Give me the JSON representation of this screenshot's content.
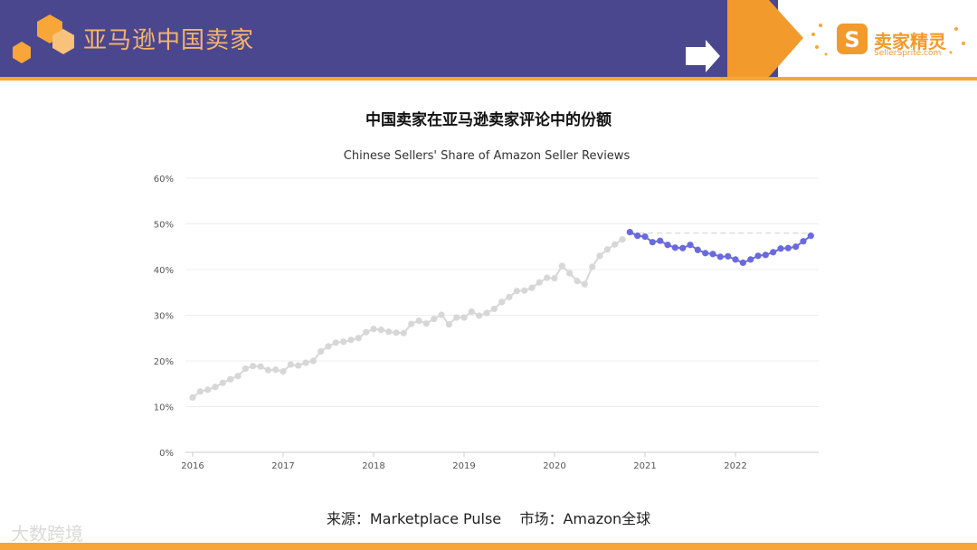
{
  "header": {
    "site_title": "亚马逊中国卖家",
    "brand_name": "卖家精灵",
    "brand_sub": "SellerSprite.com",
    "brand_color": "#f29a2c",
    "band_color": "#4b478f",
    "accent_color": "#f7a637"
  },
  "heading": "中国卖家在亚马逊卖家评论中的份额",
  "source_text": "来源：Marketplace Pulse    市场：Amazon全球",
  "watermark": "大数跨境",
  "chart_data": {
    "type": "line",
    "title": "Chinese Sellers' Share of Amazon Seller Reviews",
    "x_ticks": [
      "2016",
      "2017",
      "2018",
      "2019",
      "2020",
      "2021",
      "2022"
    ],
    "y_ticks": [
      "0%",
      "10%",
      "20%",
      "30%",
      "40%",
      "50%",
      "60%"
    ],
    "ylim": [
      0,
      60
    ],
    "xlim": [
      2015.92,
      2022.92
    ],
    "grid": true,
    "reference_line": 48,
    "series": [
      {
        "color": "#d7d7d7",
        "x": [
          2016.0,
          2016.083,
          2016.167,
          2016.25,
          2016.333,
          2016.417,
          2016.5,
          2016.583,
          2016.667,
          2016.75,
          2016.833,
          2016.917,
          2017.0,
          2017.083,
          2017.167,
          2017.25,
          2017.333,
          2017.417,
          2017.5,
          2017.583,
          2017.667,
          2017.75,
          2017.833,
          2017.917,
          2018.0,
          2018.083,
          2018.167,
          2018.25,
          2018.333,
          2018.417,
          2018.5,
          2018.583,
          2018.667,
          2018.75,
          2018.833,
          2018.917,
          2019.0,
          2019.083,
          2019.167,
          2019.25,
          2019.333,
          2019.417,
          2019.5,
          2019.583,
          2019.667,
          2019.75,
          2019.833,
          2019.917,
          2020.0,
          2020.083,
          2020.167,
          2020.25,
          2020.333,
          2020.417,
          2020.5,
          2020.583,
          2020.667,
          2020.75
        ],
        "y": [
          12.0,
          13.3,
          13.7,
          14.3,
          15.2,
          16.0,
          16.7,
          18.3,
          18.9,
          18.8,
          18.0,
          18.1,
          17.7,
          19.2,
          19.0,
          19.6,
          20.0,
          22.1,
          23.2,
          24.0,
          24.2,
          24.6,
          25.0,
          26.3,
          27.0,
          26.8,
          26.4,
          26.2,
          26.1,
          28.1,
          28.8,
          28.2,
          29.2,
          30.1,
          28.0,
          29.5,
          29.5,
          30.8,
          29.9,
          30.5,
          31.4,
          32.9,
          34.0,
          35.3,
          35.4,
          36.0,
          37.2,
          38.2,
          38.1,
          40.8,
          39.2,
          37.5,
          36.8,
          40.6,
          43.0,
          44.4,
          45.5,
          46.6
        ]
      },
      {
        "color": "#6a6ade",
        "x": [
          2020.833,
          2020.917,
          2021.0,
          2021.083,
          2021.167,
          2021.25,
          2021.333,
          2021.417,
          2021.5,
          2021.583,
          2021.667,
          2021.75,
          2021.833,
          2021.917,
          2022.0,
          2022.083,
          2022.167,
          2022.25,
          2022.333,
          2022.417,
          2022.5,
          2022.583,
          2022.667,
          2022.75,
          2022.833
        ],
        "y": [
          48.2,
          47.4,
          47.2,
          46.0,
          46.3,
          45.4,
          44.8,
          44.7,
          45.4,
          44.3,
          43.6,
          43.4,
          42.8,
          42.9,
          42.2,
          41.5,
          42.2,
          43.0,
          43.2,
          43.8,
          44.6,
          44.7,
          45.0,
          46.2,
          47.4
        ]
      }
    ]
  }
}
